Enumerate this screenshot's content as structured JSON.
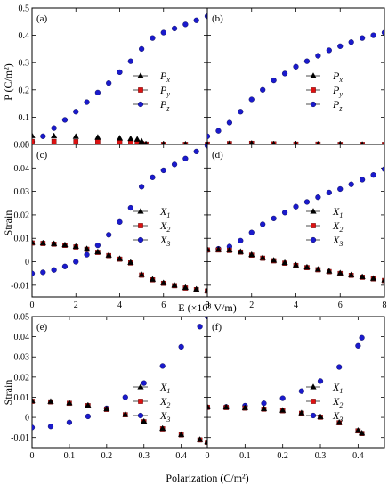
{
  "colors": {
    "px": "#000000",
    "py": "#dd1111",
    "pz": "#1a1acc",
    "frame": "#000000"
  },
  "labels": {
    "ylabel_top": "P (C/m²)",
    "ylabel_strain_mid": "Strain",
    "ylabel_strain_bottom": "Strain",
    "xlabel_field": "E (×10⁸ V/m)",
    "xlabel_polarization": "Polarization (C/m²)"
  },
  "chart_data": [
    {
      "panel": "(a)",
      "type": "scatter",
      "xlim": [
        0,
        8
      ],
      "ylim": [
        0,
        0.5
      ],
      "yticks": [
        "0",
        "0.1",
        "0.2",
        "0.3",
        "0.4",
        "0.5"
      ],
      "xticks": [],
      "legend": "right",
      "series": [
        {
          "name": "Px",
          "marker": "triangle",
          "color": "#000000",
          "x": [
            0,
            1,
            2,
            3,
            4,
            4.5,
            4.8,
            5,
            5.2,
            6,
            7,
            8
          ],
          "y": [
            0.032,
            0.031,
            0.029,
            0.026,
            0.023,
            0.021,
            0.019,
            0.012,
            0.002,
            0.001,
            0.001,
            0.001
          ]
        },
        {
          "name": "Py",
          "marker": "square",
          "color": "#dd1111",
          "x": [
            0,
            1,
            2,
            3,
            4,
            4.5,
            4.8,
            5,
            5.2,
            6,
            7,
            8
          ],
          "y": [
            0.011,
            0.011,
            0.01,
            0.009,
            0.007,
            0.006,
            0.005,
            0.003,
            0.001,
            0.0,
            0.0,
            0.0
          ]
        },
        {
          "name": "Pz",
          "marker": "circle",
          "color": "#1a1acc",
          "x": [
            0,
            0.5,
            1,
            1.5,
            2,
            2.5,
            3,
            3.5,
            4,
            4.5,
            5,
            5.5,
            6,
            6.5,
            7,
            7.5,
            8
          ],
          "y": [
            0.01,
            0.03,
            0.06,
            0.09,
            0.12,
            0.155,
            0.19,
            0.225,
            0.265,
            0.305,
            0.35,
            0.39,
            0.41,
            0.425,
            0.44,
            0.455,
            0.47
          ]
        }
      ]
    },
    {
      "panel": "(b)",
      "type": "scatter",
      "xlim": [
        0,
        8
      ],
      "ylim": [
        0,
        0.5
      ],
      "yticks": [],
      "xticks": [],
      "legend": "right",
      "series": [
        {
          "name": "Px",
          "marker": "triangle",
          "color": "#000000",
          "x": [
            0,
            1,
            2,
            3,
            4,
            5,
            6,
            7,
            8
          ],
          "y": [
            0.001,
            0.003,
            0.004,
            0.002,
            0.001,
            0.001,
            0.001,
            0.0,
            0.0
          ]
        },
        {
          "name": "Py",
          "marker": "square",
          "color": "#dd1111",
          "x": [
            0,
            1,
            2,
            3,
            4,
            5,
            6,
            7,
            8
          ],
          "y": [
            0.001,
            0.003,
            0.004,
            0.002,
            0.001,
            0.001,
            0.0,
            0.0,
            0.0
          ]
        },
        {
          "name": "Pz",
          "marker": "circle",
          "color": "#1a1acc",
          "x": [
            0,
            0.5,
            1,
            1.5,
            2,
            2.5,
            3,
            3.5,
            4,
            4.5,
            5,
            5.5,
            6,
            6.5,
            7,
            7.5,
            8
          ],
          "y": [
            0.03,
            0.05,
            0.08,
            0.12,
            0.165,
            0.2,
            0.235,
            0.26,
            0.285,
            0.305,
            0.325,
            0.345,
            0.36,
            0.375,
            0.39,
            0.4,
            0.41
          ]
        }
      ]
    },
    {
      "panel": "(c)",
      "type": "scatter",
      "xlim": [
        0,
        8
      ],
      "ylim": [
        -0.015,
        0.05
      ],
      "yticks": [
        "-0.01",
        "0",
        "0.01",
        "0.02",
        "0.03",
        "0.04",
        "0.05"
      ],
      "xticks": [
        "0",
        "2",
        "4",
        "6",
        "8"
      ],
      "legend": "right",
      "series": [
        {
          "name": "X1",
          "marker": "triangle",
          "color": "#000000",
          "x": [
            0,
            0.5,
            1,
            1.5,
            2,
            2.5,
            3,
            3.5,
            4,
            4.5,
            5,
            5.5,
            6,
            6.5,
            7,
            7.5,
            8
          ],
          "y": [
            0.0082,
            0.008,
            0.0077,
            0.0072,
            0.0065,
            0.0055,
            0.0042,
            0.0028,
            0.0013,
            -0.0003,
            -0.0055,
            -0.0075,
            -0.009,
            -0.01,
            -0.011,
            -0.0117,
            -0.0123
          ]
        },
        {
          "name": "X2",
          "marker": "square",
          "color": "#dd1111",
          "x": [
            0,
            0.5,
            1,
            1.5,
            2,
            2.5,
            3,
            3.5,
            4,
            4.5,
            5,
            5.5,
            6,
            6.5,
            7,
            7.5,
            8
          ],
          "y": [
            0.008,
            0.0078,
            0.0075,
            0.007,
            0.0063,
            0.0053,
            0.004,
            0.0026,
            0.0011,
            -0.0005,
            -0.0057,
            -0.0077,
            -0.0092,
            -0.0102,
            -0.0112,
            -0.0119,
            -0.0125
          ]
        },
        {
          "name": "X3",
          "marker": "circle",
          "color": "#1a1acc",
          "x": [
            0,
            0.5,
            1,
            1.5,
            2,
            2.5,
            3,
            3.5,
            4,
            4.5,
            5,
            5.5,
            6,
            6.5,
            7,
            7.5,
            8
          ],
          "y": [
            -0.005,
            -0.0045,
            -0.0035,
            -0.002,
            0.0,
            0.003,
            0.007,
            0.0115,
            0.017,
            0.023,
            0.032,
            0.036,
            0.039,
            0.0415,
            0.044,
            0.047,
            0.0495
          ]
        }
      ]
    },
    {
      "panel": "(d)",
      "type": "scatter",
      "xlim": [
        0,
        8
      ],
      "ylim": [
        -0.015,
        0.05
      ],
      "yticks": [],
      "xticks": [
        "0",
        "2",
        "4",
        "6",
        "8"
      ],
      "legend": "right",
      "series": [
        {
          "name": "X1",
          "marker": "triangle",
          "color": "#000000",
          "x": [
            0,
            0.5,
            1,
            1.5,
            2,
            2.5,
            3,
            3.5,
            4,
            4.5,
            5,
            5.5,
            6,
            6.5,
            7,
            7.5,
            8
          ],
          "y": [
            0.0052,
            0.0052,
            0.005,
            0.0043,
            0.003,
            0.0017,
            0.0006,
            -0.0004,
            -0.0014,
            -0.0023,
            -0.0032,
            -0.004,
            -0.0048,
            -0.0056,
            -0.0064,
            -0.0071,
            -0.0078
          ]
        },
        {
          "name": "X2",
          "marker": "square",
          "color": "#dd1111",
          "x": [
            0,
            0.5,
            1,
            1.5,
            2,
            2.5,
            3,
            3.5,
            4,
            4.5,
            5,
            5.5,
            6,
            6.5,
            7,
            7.5,
            8
          ],
          "y": [
            0.005,
            0.005,
            0.0048,
            0.0041,
            0.0028,
            0.0015,
            0.0004,
            -0.0006,
            -0.0016,
            -0.0025,
            -0.0034,
            -0.0042,
            -0.005,
            -0.0058,
            -0.0066,
            -0.0073,
            -0.008
          ]
        },
        {
          "name": "X3",
          "marker": "circle",
          "color": "#1a1acc",
          "x": [
            0,
            0.5,
            1,
            1.5,
            2,
            2.5,
            3,
            3.5,
            4,
            4.5,
            5,
            5.5,
            6,
            6.5,
            7,
            7.5,
            8
          ],
          "y": [
            0.005,
            0.0055,
            0.0065,
            0.009,
            0.0125,
            0.016,
            0.0185,
            0.021,
            0.0235,
            0.0255,
            0.0275,
            0.0295,
            0.031,
            0.033,
            0.035,
            0.037,
            0.0395
          ]
        }
      ]
    },
    {
      "panel": "(e)",
      "type": "scatter",
      "xlim": [
        0,
        0.47
      ],
      "ylim": [
        -0.015,
        0.05
      ],
      "yticks": [
        "-0.01",
        "0",
        "0.01",
        "0.02",
        "0.03",
        "0.04",
        "0.05"
      ],
      "xticks": [
        "0",
        "0.1",
        "0.2",
        "0.3",
        "0.4"
      ],
      "legend": "right",
      "series": [
        {
          "name": "X1",
          "marker": "triangle",
          "color": "#000000",
          "x": [
            0,
            0.05,
            0.1,
            0.15,
            0.2,
            0.25,
            0.3,
            0.35,
            0.4,
            0.45,
            0.47
          ],
          "y": [
            0.0082,
            0.0079,
            0.0072,
            0.006,
            0.0042,
            0.0015,
            -0.002,
            -0.0055,
            -0.0085,
            -0.011,
            -0.0122
          ]
        },
        {
          "name": "X2",
          "marker": "square",
          "color": "#dd1111",
          "x": [
            0,
            0.05,
            0.1,
            0.15,
            0.2,
            0.25,
            0.3,
            0.35,
            0.4,
            0.45,
            0.47
          ],
          "y": [
            0.008,
            0.0077,
            0.007,
            0.0058,
            0.004,
            0.0013,
            -0.0022,
            -0.0057,
            -0.0087,
            -0.0112,
            -0.0124
          ]
        },
        {
          "name": "X3",
          "marker": "circle",
          "color": "#1a1acc",
          "x": [
            0,
            0.05,
            0.1,
            0.15,
            0.2,
            0.25,
            0.3,
            0.35,
            0.4,
            0.45,
            0.47
          ],
          "y": [
            -0.005,
            -0.0045,
            -0.0025,
            0.0005,
            0.0045,
            0.01,
            0.017,
            0.0255,
            0.035,
            0.045,
            0.05
          ]
        }
      ]
    },
    {
      "panel": "(f)",
      "type": "scatter",
      "xlim": [
        0,
        0.47
      ],
      "ylim": [
        -0.015,
        0.05
      ],
      "yticks": [],
      "xticks": [
        "0",
        "0.1",
        "0.2",
        "0.3",
        "0.4"
      ],
      "legend": "right",
      "series": [
        {
          "name": "X1",
          "marker": "triangle",
          "color": "#000000",
          "x": [
            0,
            0.05,
            0.1,
            0.15,
            0.2,
            0.25,
            0.3,
            0.35,
            0.4,
            0.41
          ],
          "y": [
            0.0052,
            0.0051,
            0.0048,
            0.0043,
            0.0035,
            0.0022,
            0.0003,
            -0.0025,
            -0.0065,
            -0.0078
          ]
        },
        {
          "name": "X2",
          "marker": "square",
          "color": "#dd1111",
          "x": [
            0,
            0.05,
            0.1,
            0.15,
            0.2,
            0.25,
            0.3,
            0.35,
            0.4,
            0.41
          ],
          "y": [
            0.005,
            0.0049,
            0.0046,
            0.0041,
            0.0033,
            0.002,
            0.0001,
            -0.0027,
            -0.0067,
            -0.008
          ]
        },
        {
          "name": "X3",
          "marker": "circle",
          "color": "#1a1acc",
          "x": [
            0,
            0.05,
            0.1,
            0.15,
            0.2,
            0.25,
            0.3,
            0.35,
            0.4,
            0.41
          ],
          "y": [
            0.005,
            0.0052,
            0.0058,
            0.007,
            0.0095,
            0.013,
            0.018,
            0.025,
            0.0355,
            0.0395
          ]
        }
      ]
    }
  ]
}
